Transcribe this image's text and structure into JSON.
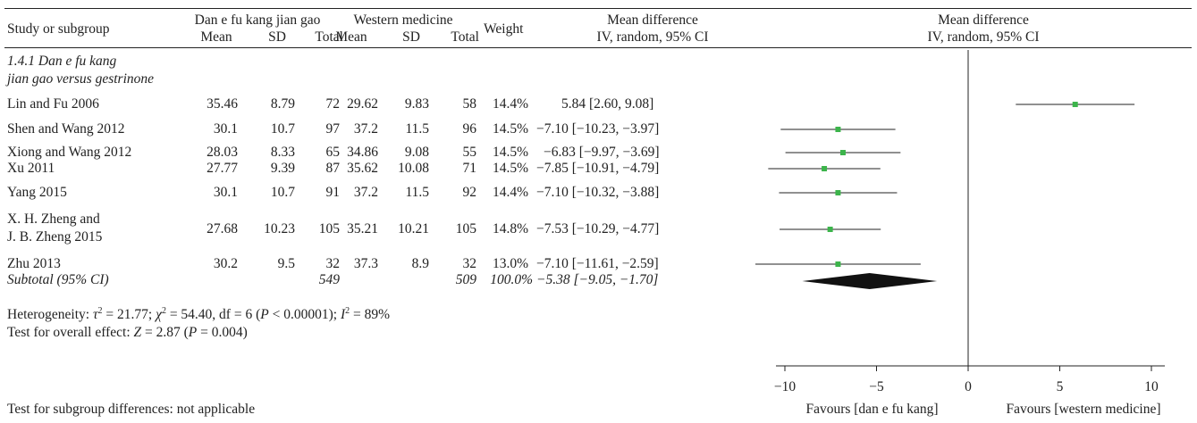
{
  "header": {
    "study_col": "Study or subgroup",
    "group1": "Dan e fu kang jian gao",
    "group2": "Western medicine",
    "weight": "Weight",
    "md_col_line1": "Mean difference",
    "md_col_line2": "IV, random, 95% CI",
    "plot_line1": "Mean difference",
    "plot_line2": "IV, random, 95% CI",
    "mean": "Mean",
    "sd": "SD",
    "total": "Total"
  },
  "subgroup_title_line1": "1.4.1 Dan e fu kang",
  "subgroup_title_line2": "jian gao versus gestrinone",
  "studies": [
    {
      "name": "Lin and Fu 2006",
      "m1": "35.46",
      "sd1": "8.79",
      "n1": "72",
      "m2": "29.62",
      "sd2": "9.83",
      "n2": "58",
      "weight": "14.4%",
      "ci": "5.84 [2.60, 9.08]"
    },
    {
      "name": "Shen and Wang 2012",
      "m1": "30.1",
      "sd1": "10.7",
      "n1": "97",
      "m2": "37.2",
      "sd2": "11.5",
      "n2": "96",
      "weight": "14.5%",
      "ci": "−7.10 [−10.23, −3.97]"
    },
    {
      "name": "Xiong and Wang 2012",
      "m1": "28.03",
      "sd1": "8.33",
      "n1": "65",
      "m2": "34.86",
      "sd2": "9.08",
      "n2": "55",
      "weight": "14.5%",
      "ci": "−6.83 [−9.97, −3.69]"
    },
    {
      "name": "Xu 2011",
      "m1": "27.77",
      "sd1": "9.39",
      "n1": "87",
      "m2": "35.62",
      "sd2": "10.08",
      "n2": "71",
      "weight": "14.5%",
      "ci": "−7.85 [−10.91, −4.79]"
    },
    {
      "name": "Yang 2015",
      "m1": "30.1",
      "sd1": "10.7",
      "n1": "91",
      "m2": "37.2",
      "sd2": "11.5",
      "n2": "92",
      "weight": "14.4%",
      "ci": "−7.10 [−10.32, −3.88]"
    },
    {
      "name": "X. H. Zheng and",
      "name2": "J. B. Zheng 2015",
      "m1": "27.68",
      "sd1": "10.23",
      "n1": "105",
      "m2": "35.21",
      "sd2": "10.21",
      "n2": "105",
      "weight": "14.8%",
      "ci": "−7.53 [−10.29, −4.77]"
    },
    {
      "name": "Zhu 2013",
      "m1": "30.2",
      "sd1": "9.5",
      "n1": "32",
      "m2": "37.3",
      "sd2": "8.9",
      "n2": "32",
      "weight": "13.0%",
      "ci": "−7.10 [−11.61, −2.59]"
    }
  ],
  "subtotal": {
    "label": "Subtotal (95% CI)",
    "n1": "549",
    "n2": "509",
    "weight": "100.0%",
    "ci": "−5.38 [−9.05, −1.70]"
  },
  "heterogeneity": {
    "p1": "Heterogeneity: ",
    "tau": "τ",
    "sup2a": "2",
    "p2": " = 21.77; ",
    "chi": "χ",
    "sup2b": "2",
    "p3": " = 54.40, df = 6 (",
    "P": "P",
    "p4": " < 0.00001); ",
    "I": "I",
    "sup2c": "2",
    "p5": " = 89%"
  },
  "overall": {
    "p1": "Test for overall effect: ",
    "Z": "Z",
    "p2": " = 2.87 (",
    "P": "P",
    "p3": " = 0.004)"
  },
  "subgroup_diff": "Test for subgroup differences: not applicable",
  "favours_left": "Favours [dan e fu kang]",
  "favours_right": "Favours [western medicine]",
  "colors": {
    "marker": "#3cb44b",
    "line": "#222222"
  },
  "chart_data": {
    "type": "forest",
    "xlim": [
      -13,
      13
    ],
    "ticks": [
      -10,
      -5,
      0,
      5,
      10
    ],
    "tick_labels": [
      "−10",
      "−5",
      "0",
      "5",
      "10"
    ],
    "studies": [
      {
        "name": "Lin and Fu 2006",
        "md": 5.84,
        "lo": 2.6,
        "hi": 9.08,
        "weight": 14.4
      },
      {
        "name": "Shen and Wang 2012",
        "md": -7.1,
        "lo": -10.23,
        "hi": -3.97,
        "weight": 14.5
      },
      {
        "name": "Xiong and Wang 2012",
        "md": -6.83,
        "lo": -9.97,
        "hi": -3.69,
        "weight": 14.5
      },
      {
        "name": "Xu 2011",
        "md": -7.85,
        "lo": -10.91,
        "hi": -4.79,
        "weight": 14.5
      },
      {
        "name": "Yang 2015",
        "md": -7.1,
        "lo": -10.32,
        "hi": -3.88,
        "weight": 14.4
      },
      {
        "name": "X. H. Zheng and J. B. Zheng 2015",
        "md": -7.53,
        "lo": -10.29,
        "hi": -4.77,
        "weight": 14.8
      },
      {
        "name": "Zhu 2013",
        "md": -7.1,
        "lo": -11.61,
        "hi": -2.59,
        "weight": 13.0
      }
    ],
    "pooled": {
      "md": -5.38,
      "lo": -9.05,
      "hi": -1.7
    }
  }
}
